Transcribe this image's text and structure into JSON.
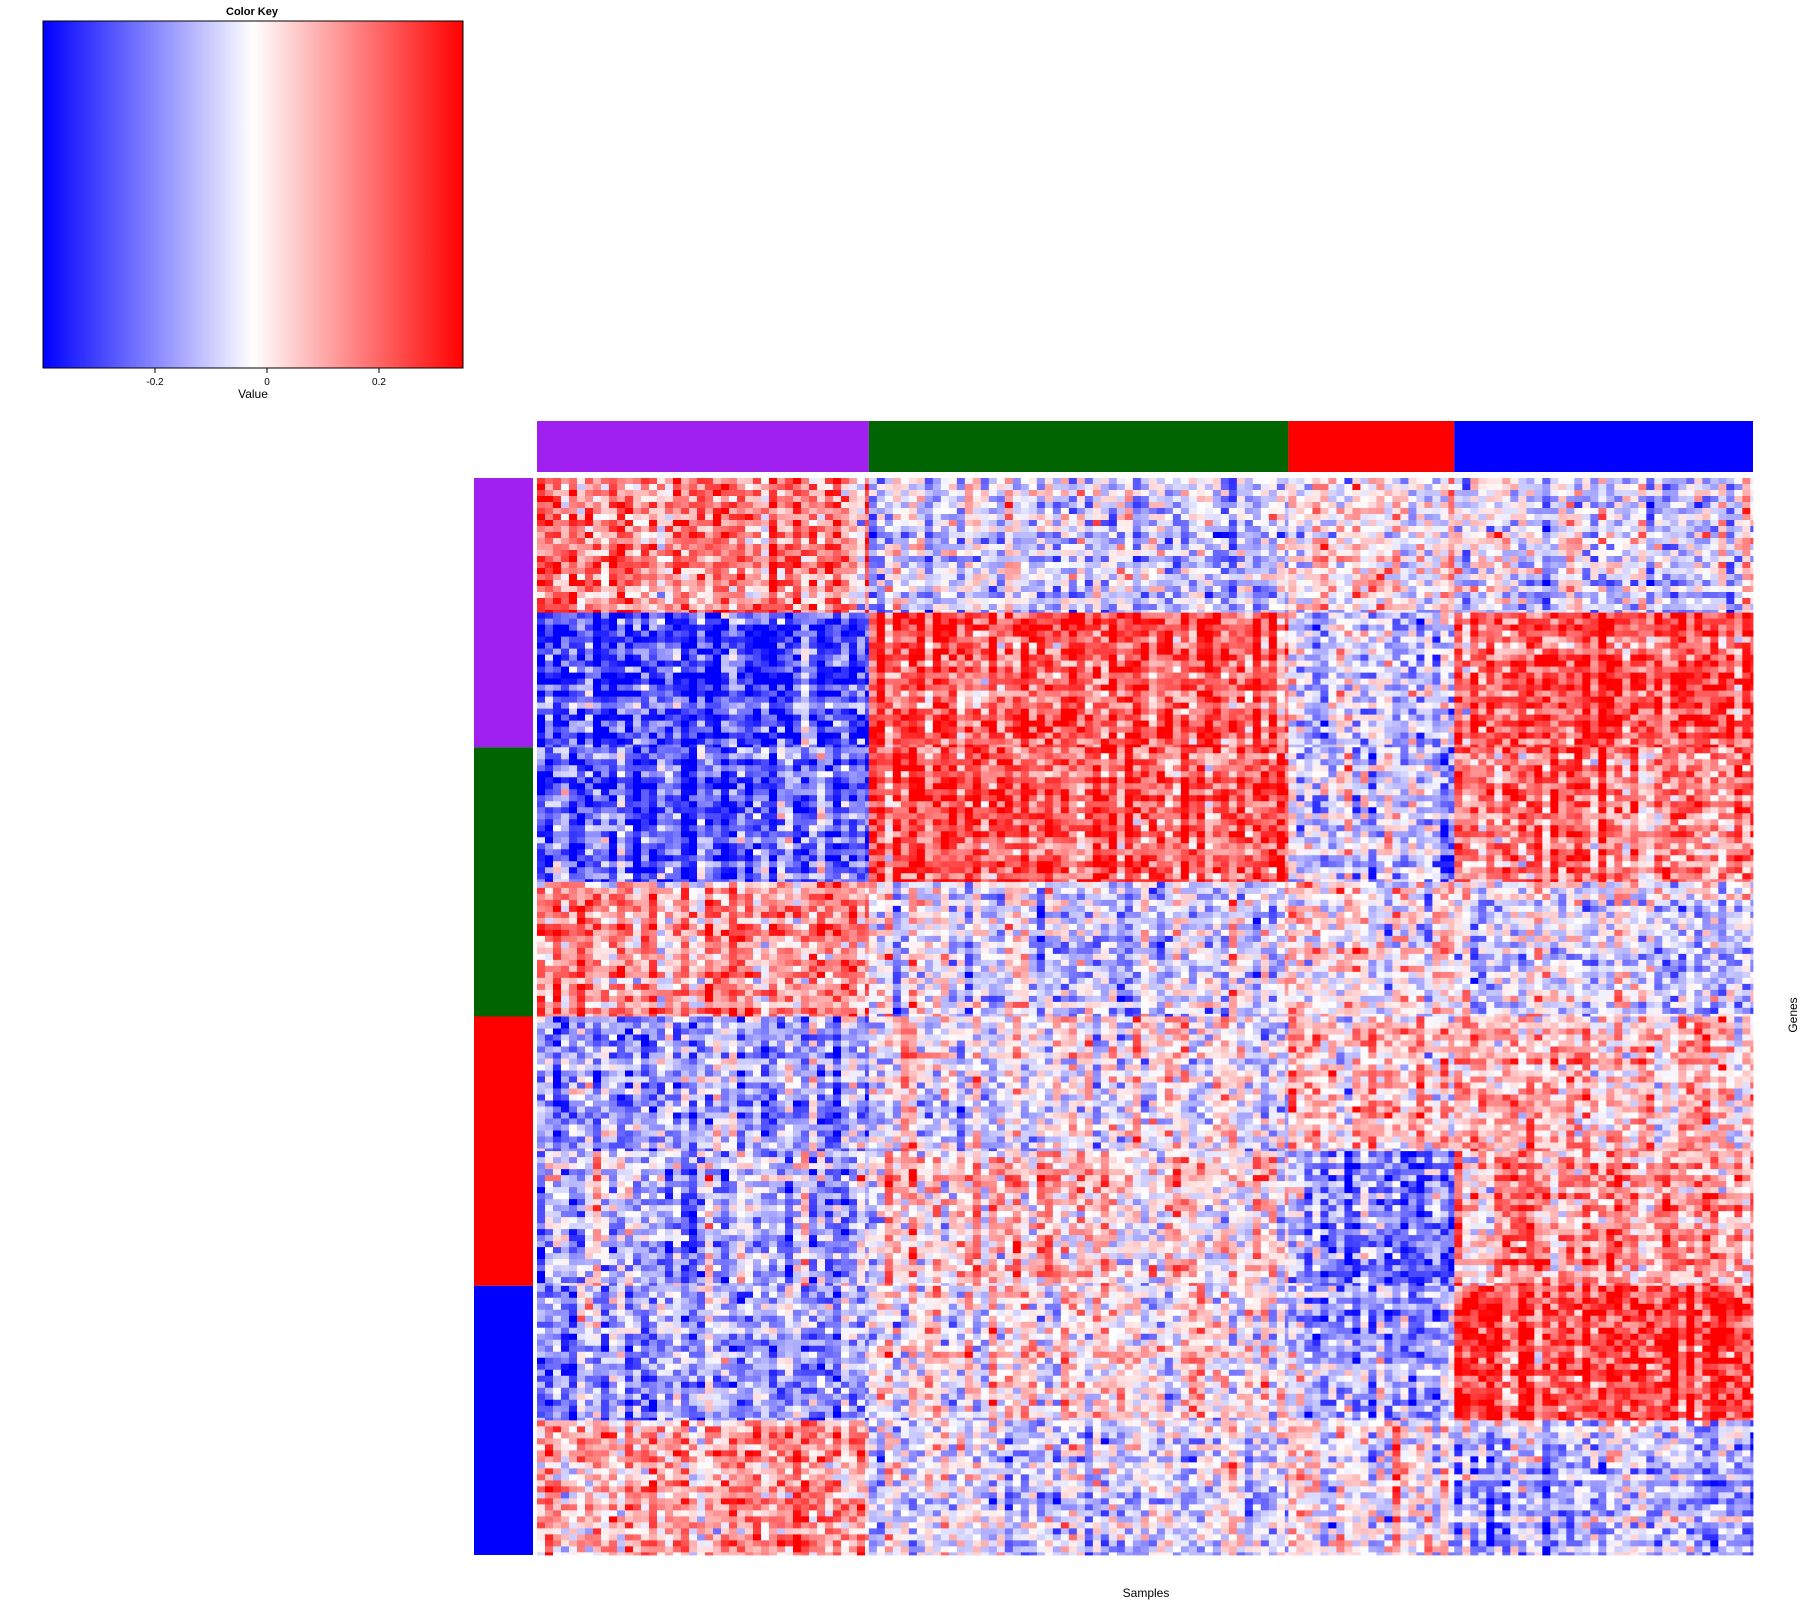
{
  "chart_data": {
    "type": "heatmap",
    "title": "",
    "xlabel": "Samples",
    "ylabel": "Genes",
    "color_key": {
      "title": "Color Key",
      "xlabel": "Value",
      "range": [
        -0.4,
        0.35
      ],
      "ticks": [
        {
          "value": -0.2,
          "label": "-0.2"
        },
        {
          "value": 0,
          "label": "0"
        },
        {
          "value": 0.2,
          "label": "0.2"
        }
      ],
      "colors": {
        "low": "#0000ff",
        "mid": "#ffffff",
        "high": "#ff0000"
      }
    },
    "column_groups": [
      {
        "color": "#a020f0",
        "samples": 140
      },
      {
        "color": "#006400",
        "samples": 177
      },
      {
        "color": "#ff0000",
        "samples": 70
      },
      {
        "color": "#0000ff",
        "samples": 126
      }
    ],
    "row_groups": [
      {
        "color": "#a020f0",
        "genes": 200
      },
      {
        "color": "#006400",
        "genes": 200
      },
      {
        "color": "#ff0000",
        "genes": 200
      },
      {
        "color": "#0000ff",
        "genes": 200
      }
    ],
    "block_means": [
      [
        0.15,
        -0.08,
        0.0,
        -0.06
      ],
      [
        -0.3,
        0.22,
        -0.1,
        0.24
      ],
      [
        -0.25,
        0.22,
        -0.1,
        0.15
      ],
      [
        0.15,
        -0.08,
        0.0,
        -0.05
      ],
      [
        -0.12,
        -0.03,
        0.08,
        0.05
      ],
      [
        -0.12,
        0.05,
        -0.2,
        0.12
      ],
      [
        -0.16,
        0.03,
        -0.12,
        0.25
      ],
      [
        0.1,
        -0.06,
        0.0,
        -0.12
      ]
    ],
    "grid": false
  }
}
